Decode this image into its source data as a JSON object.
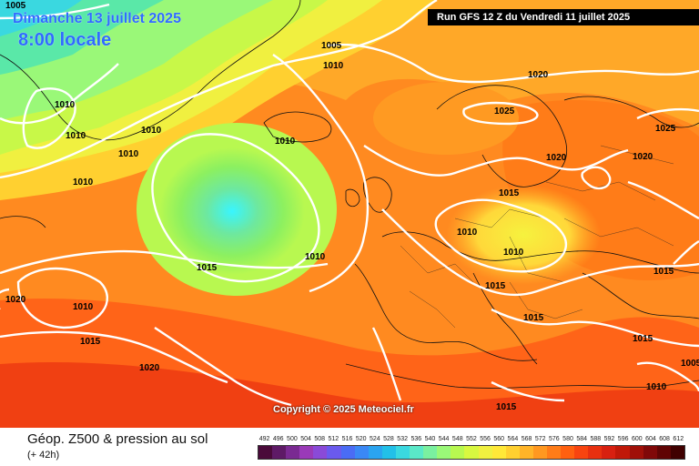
{
  "header": {
    "date": "Dimanche 13 juillet 2025",
    "time": "8:00 locale",
    "run": "Run GFS 12 Z du Vendredi 11 juillet 2025"
  },
  "copyright": "Copyright © 2025 Meteociel.fr",
  "footer": {
    "title": "Géop. Z500 & pression au sol",
    "subtitle": "(+ 42h)"
  },
  "scale": {
    "labels": [
      "492",
      "496",
      "500",
      "504",
      "508",
      "512",
      "516",
      "520",
      "524",
      "528",
      "532",
      "536",
      "540",
      "544",
      "548",
      "552",
      "556",
      "560",
      "564",
      "568",
      "572",
      "576",
      "580",
      "584",
      "588",
      "592",
      "596",
      "600",
      "604",
      "608",
      "612"
    ],
    "colors": [
      "#4a0a3a",
      "#5e1a66",
      "#7a2a92",
      "#9a3ab8",
      "#8a4ad8",
      "#6a5aee",
      "#4a6cf5",
      "#3a88f5",
      "#2aa4f0",
      "#22c0e8",
      "#3ad8e0",
      "#5ae8c8",
      "#7af0a0",
      "#9af878",
      "#b8f850",
      "#d8f840",
      "#f0f040",
      "#ffe838",
      "#ffd030",
      "#ffb428",
      "#ff9820",
      "#ff7c18",
      "#ff6010",
      "#f84410",
      "#e83010",
      "#d82010",
      "#c01808",
      "#a01008",
      "#800808",
      "#600404",
      "#400000"
    ]
  },
  "isobars": [
    "1005",
    "1010",
    "1010",
    "1010",
    "1010",
    "1010",
    "1010",
    "1010",
    "1005",
    "1020",
    "1025",
    "1020",
    "1020",
    "1025",
    "1015",
    "1010",
    "1010",
    "1015",
    "1015",
    "1015",
    "1015",
    "1020",
    "1010",
    "1015",
    "1020",
    "1015",
    "1010",
    "1005",
    "1015"
  ]
}
